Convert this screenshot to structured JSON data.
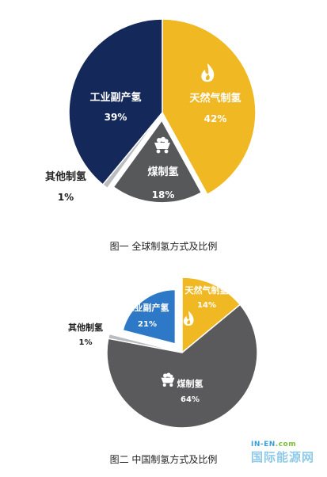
{
  "chart_data": [
    {
      "type": "pie",
      "title": "图一 全球制氢方式及比例",
      "slices": [
        {
          "label": "天然气制氢",
          "pct_label": "42%",
          "value": 42,
          "color": "#f0b823",
          "text_color": "#ffffff",
          "icon": "flame-icon"
        },
        {
          "label": "煤制氢",
          "pct_label": "18%",
          "value": 18,
          "color": "#57585a",
          "text_color": "#ffffff",
          "icon": "coal-cart-icon"
        },
        {
          "label": "其他制氢",
          "pct_label": "1%",
          "value": 1,
          "color": "#b9bdc0",
          "text_color": "#222222",
          "icon": ""
        },
        {
          "label": "工业副产氢",
          "pct_label": "39%",
          "value": 39,
          "color": "#14295a",
          "text_color": "#ffffff",
          "icon": ""
        }
      ]
    },
    {
      "type": "pie",
      "title": "图二 中国制氢方式及比例",
      "slices": [
        {
          "label": "天然气制氢",
          "pct_label": "14%",
          "value": 14,
          "color": "#f0b823",
          "text_color": "#ffffff",
          "icon": "flame-icon"
        },
        {
          "label": "煤制氢",
          "pct_label": "64%",
          "value": 64,
          "color": "#5a5a5c",
          "text_color": "#ffffff",
          "icon": "coal-cart-icon"
        },
        {
          "label": "其他制氢",
          "pct_label": "1%",
          "value": 1,
          "color": "#b9bdc0",
          "text_color": "#222222",
          "icon": ""
        },
        {
          "label": "工业副产氢",
          "pct_label": "21%",
          "value": 21,
          "color": "#2d79c7",
          "text_color": "#ffffff",
          "icon": ""
        }
      ]
    }
  ],
  "watermark": {
    "en_prefix": "IN-EN",
    "en_suffix": ".com",
    "cn": "国际能源网"
  }
}
